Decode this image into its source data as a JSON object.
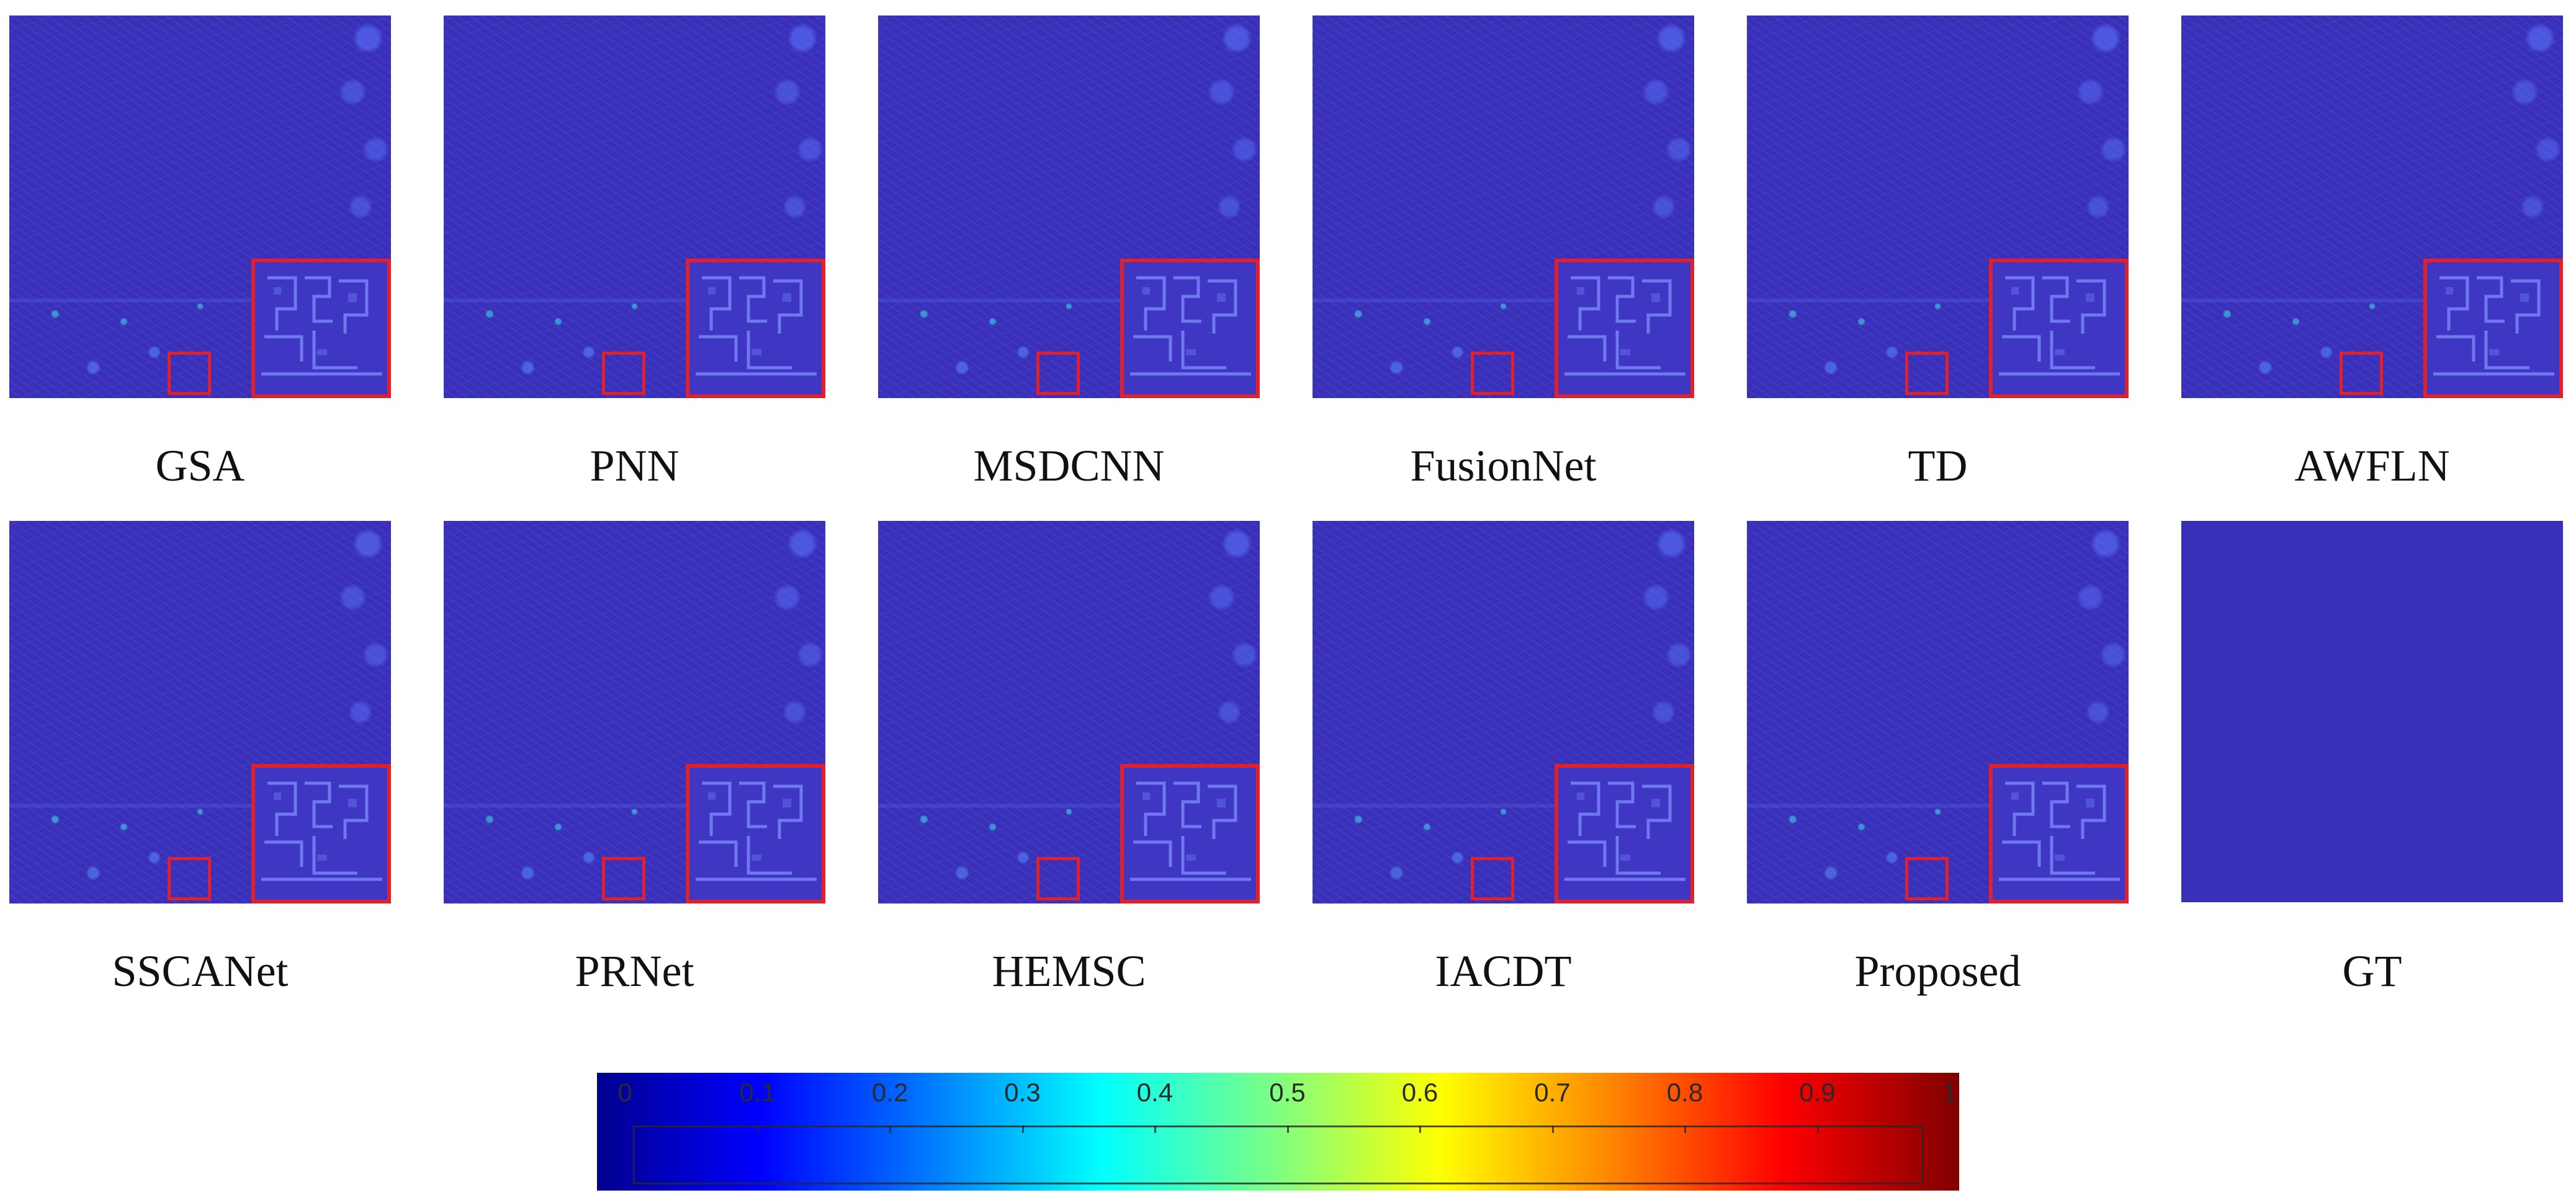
{
  "figure": {
    "row1": [
      {
        "label": "GSA"
      },
      {
        "label": "PNN"
      },
      {
        "label": "MSDCNN"
      },
      {
        "label": "FusionNet"
      },
      {
        "label": "TD"
      },
      {
        "label": "AWFLN"
      }
    ],
    "row2": [
      {
        "label": "SSCANet"
      },
      {
        "label": "PRNet"
      },
      {
        "label": "HEMSC"
      },
      {
        "label": "IACDT"
      },
      {
        "label": "Proposed"
      },
      {
        "label": "GT"
      }
    ]
  },
  "colorbar": {
    "ticks": [
      "0",
      "0.1",
      "0.2",
      "0.3",
      "0.4",
      "0.5",
      "0.6",
      "0.7",
      "0.8",
      "0.9",
      "1"
    ]
  }
}
